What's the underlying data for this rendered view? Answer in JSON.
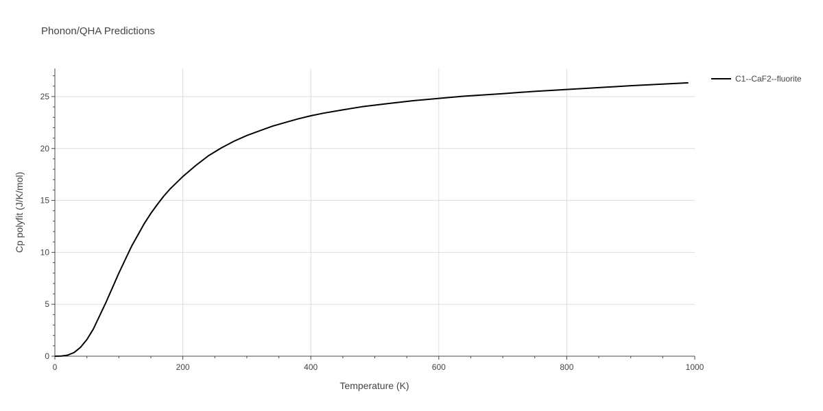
{
  "chart_data": {
    "type": "line",
    "title": "Phonon/QHA Predictions",
    "xlabel": "Temperature (K)",
    "ylabel": "Cp polyfit (J/K/mol)",
    "xlim": [
      0,
      1000
    ],
    "ylim": [
      0,
      27.7
    ],
    "xticks": [
      0,
      200,
      400,
      600,
      800,
      1000
    ],
    "yticks": [
      0,
      5,
      10,
      15,
      20,
      25
    ],
    "grid": true,
    "legend_position": "top-right",
    "series": [
      {
        "name": "C1--CaF2--fluorite",
        "color": "#000000",
        "x": [
          0,
          10,
          20,
          30,
          40,
          50,
          60,
          70,
          80,
          90,
          100,
          110,
          120,
          130,
          140,
          150,
          160,
          170,
          180,
          190,
          200,
          220,
          240,
          260,
          280,
          300,
          320,
          340,
          360,
          380,
          400,
          420,
          450,
          480,
          520,
          560,
          600,
          640,
          700,
          750,
          800,
          850,
          900,
          950,
          990
        ],
        "y": [
          0,
          0.02,
          0.1,
          0.35,
          0.85,
          1.6,
          2.6,
          3.9,
          5.2,
          6.6,
          8.0,
          9.3,
          10.6,
          11.7,
          12.8,
          13.75,
          14.6,
          15.4,
          16.1,
          16.7,
          17.3,
          18.35,
          19.3,
          20.05,
          20.7,
          21.25,
          21.7,
          22.15,
          22.5,
          22.85,
          23.15,
          23.4,
          23.72,
          24.02,
          24.32,
          24.6,
          24.82,
          25.04,
          25.28,
          25.5,
          25.68,
          25.86,
          26.04,
          26.2,
          26.32
        ]
      }
    ]
  }
}
